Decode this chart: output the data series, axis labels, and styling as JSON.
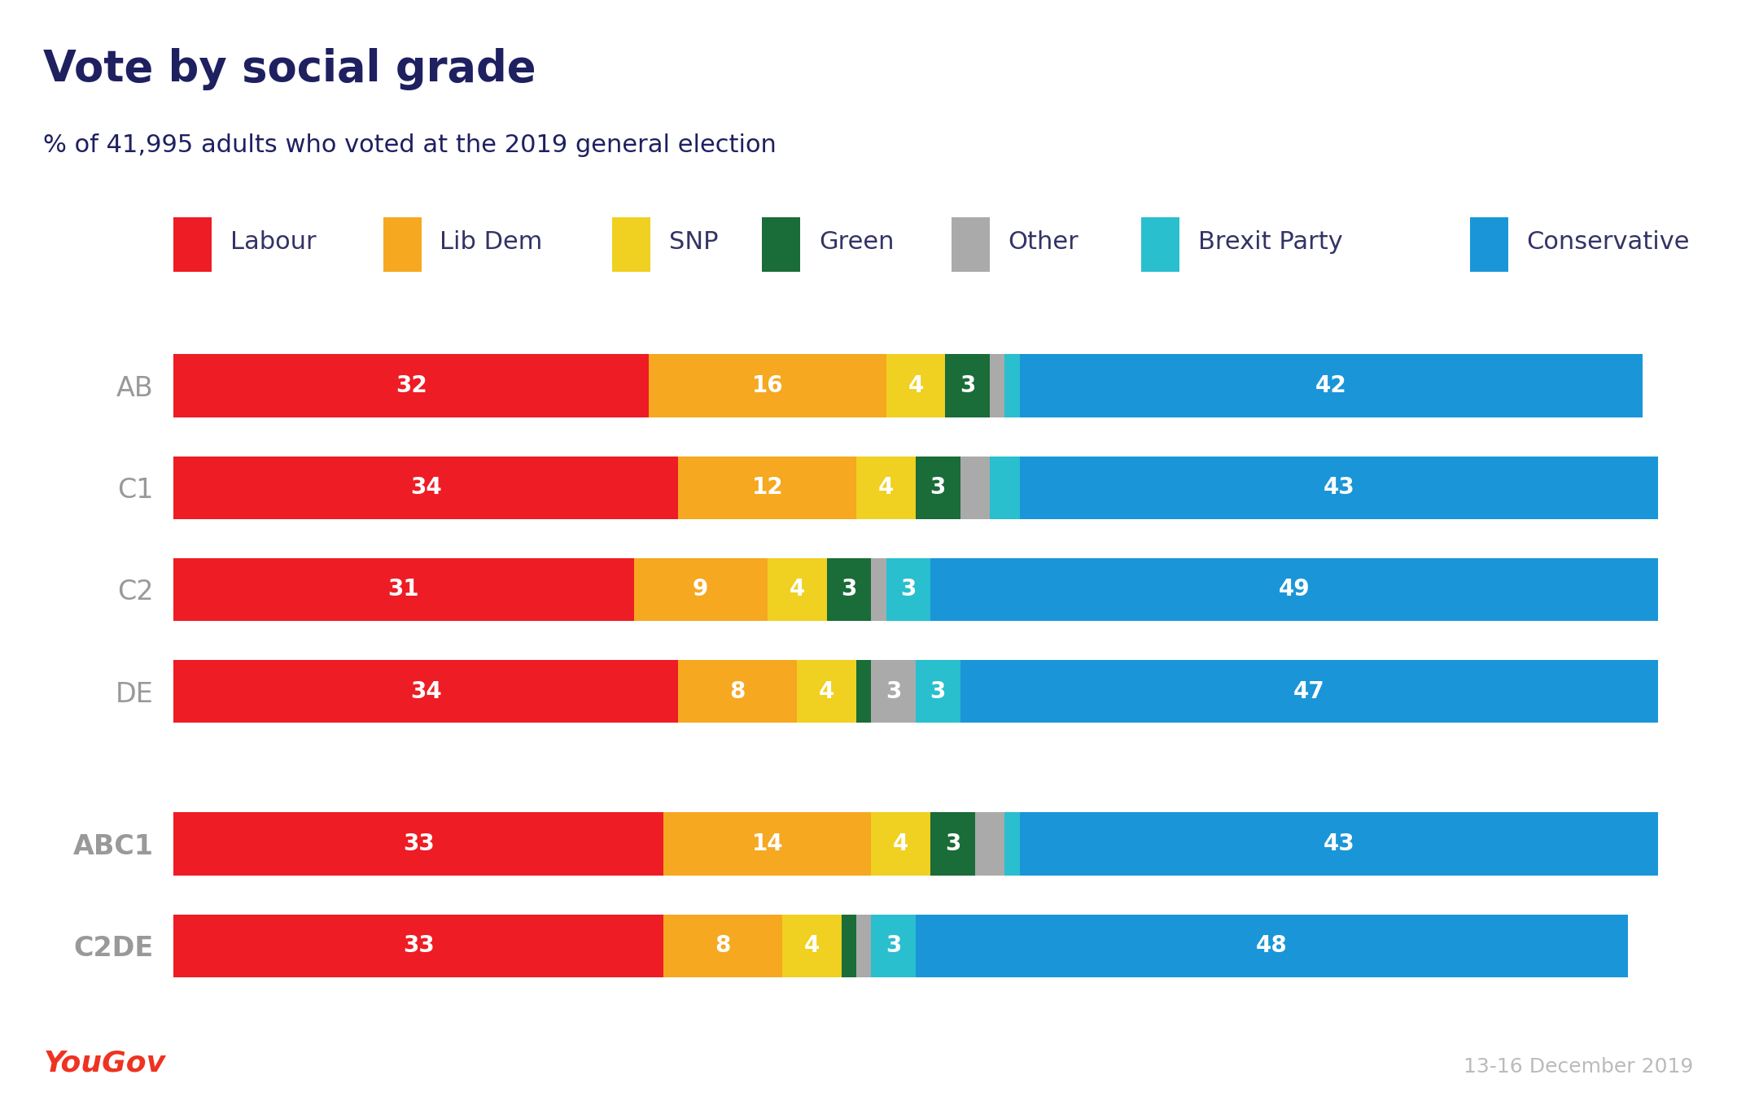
{
  "title": "Vote by social grade",
  "subtitle": "% of 41,995 adults who voted at the 2019 general election",
  "background_color": "#ffffff",
  "header_color": "#e8e8f0",
  "footer_left": "YouGov",
  "footer_right": "13-16 December 2019",
  "categories": [
    "AB",
    "C1",
    "C2",
    "DE",
    "ABC1",
    "C2DE"
  ],
  "parties": [
    "Labour",
    "Lib Dem",
    "SNP",
    "Green",
    "Other",
    "Brexit Party",
    "Conservative"
  ],
  "colors": {
    "Labour": "#ee1c24",
    "Lib Dem": "#f5a820",
    "SNP": "#f0d020",
    "Green": "#1a6c38",
    "Other": "#aaaaaa",
    "Brexit Party": "#29bfce",
    "Conservative": "#1a96d8"
  },
  "data": {
    "AB": [
      32,
      16,
      4,
      3,
      1,
      1,
      42
    ],
    "C1": [
      34,
      12,
      4,
      3,
      2,
      2,
      43
    ],
    "C2": [
      31,
      9,
      4,
      3,
      1,
      3,
      49
    ],
    "DE": [
      34,
      8,
      4,
      1,
      3,
      3,
      47
    ],
    "ABC1": [
      33,
      14,
      4,
      3,
      2,
      1,
      43
    ],
    "C2DE": [
      33,
      8,
      4,
      1,
      1,
      3,
      48
    ]
  },
  "bold_categories": [
    "ABC1",
    "C2DE"
  ],
  "bar_height": 0.62,
  "label_fontsize": 20,
  "category_fontsize": 24,
  "title_fontsize": 38,
  "subtitle_fontsize": 22,
  "legend_fontsize": 22
}
